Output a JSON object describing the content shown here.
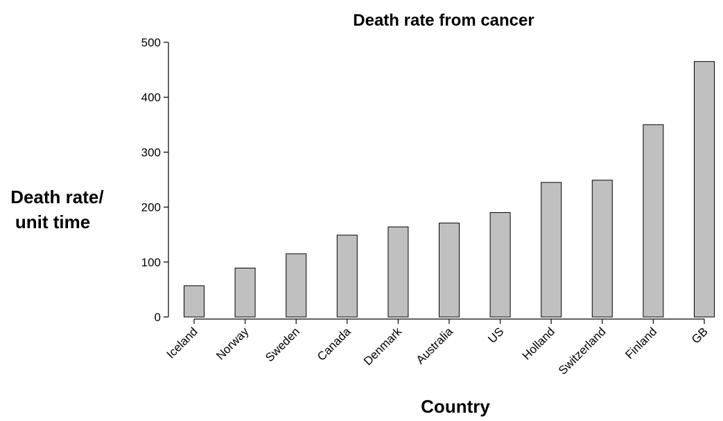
{
  "chart_data": {
    "type": "bar",
    "title": "Death rate from cancer",
    "xlabel": "Country",
    "ylabel_lines": [
      "Death rate/",
      "unit time"
    ],
    "categories": [
      "Iceland",
      "Norway",
      "Sweden",
      "Canada",
      "Denmark",
      "Australia",
      "US",
      "Holland",
      "Switzerland",
      "Finland",
      "GB"
    ],
    "values": [
      57,
      89,
      115,
      149,
      164,
      171,
      190,
      245,
      249,
      350,
      465
    ],
    "ylim": [
      0,
      500
    ],
    "yticks": [
      0,
      100,
      200,
      300,
      400,
      500
    ],
    "grid": false,
    "bar_color": "#c0c0c0"
  }
}
